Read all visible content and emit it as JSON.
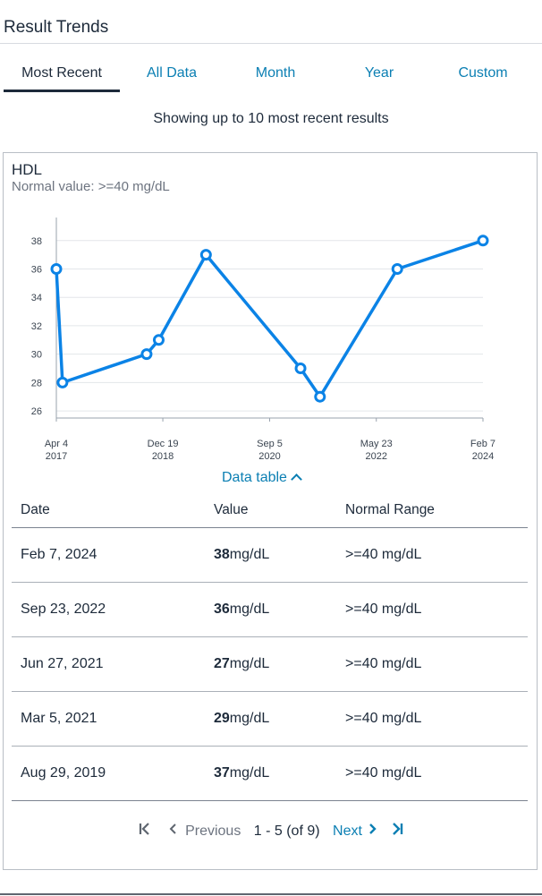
{
  "section_title": "Result Trends",
  "tabs": [
    {
      "label": "Most Recent",
      "active": true
    },
    {
      "label": "All Data",
      "active": false
    },
    {
      "label": "Month",
      "active": false
    },
    {
      "label": "Year",
      "active": false
    },
    {
      "label": "Custom",
      "active": false
    }
  ],
  "showing_text": "Showing up to 10 most recent results",
  "card": {
    "title": "HDL",
    "subtitle": "Normal value: >=40 mg/dL"
  },
  "chart_data": {
    "type": "line",
    "title": "HDL",
    "xlabel": "",
    "ylabel": "",
    "ylim": [
      25.5,
      39.5
    ],
    "yticks": [
      26,
      28,
      30,
      32,
      34,
      36,
      38
    ],
    "xticks": [
      {
        "date": "2017-04-04",
        "line1": "Apr 4",
        "line2": "2017"
      },
      {
        "date": "2018-12-19",
        "line1": "Dec 19",
        "line2": "2018"
      },
      {
        "date": "2020-09-05",
        "line1": "Sep 5",
        "line2": "2020"
      },
      {
        "date": "2022-05-23",
        "line1": "May 23",
        "line2": "2022"
      },
      {
        "date": "2024-02-07",
        "line1": "Feb 7",
        "line2": "2024"
      }
    ],
    "grid": true,
    "color": "#0b83e6",
    "series": [
      {
        "points": [
          {
            "x": "2017-04-04",
            "y": 36
          },
          {
            "x": "2017-05-10",
            "y": 28
          },
          {
            "x": "2018-09-15",
            "y": 30
          },
          {
            "x": "2018-11-25",
            "y": 31
          },
          {
            "x": "2019-08-29",
            "y": 37
          },
          {
            "x": "2021-03-05",
            "y": 29
          },
          {
            "x": "2021-06-27",
            "y": 27
          },
          {
            "x": "2022-09-23",
            "y": 36
          },
          {
            "x": "2024-02-07",
            "y": 38
          }
        ]
      }
    ]
  },
  "data_table_toggle": "Data table",
  "table": {
    "headers": [
      "Date",
      "Value",
      "Normal Range"
    ],
    "rows": [
      {
        "date": "Feb 7, 2024",
        "value": "38",
        "unit": "mg/dL",
        "range": ">=40 mg/dL"
      },
      {
        "date": "Sep 23, 2022",
        "value": "36",
        "unit": "mg/dL",
        "range": ">=40 mg/dL"
      },
      {
        "date": "Jun 27, 2021",
        "value": "27",
        "unit": "mg/dL",
        "range": ">=40 mg/dL"
      },
      {
        "date": "Mar 5, 2021",
        "value": "29",
        "unit": "mg/dL",
        "range": ">=40 mg/dL"
      },
      {
        "date": "Aug 29, 2019",
        "value": "37",
        "unit": "mg/dL",
        "range": ">=40 mg/dL"
      }
    ]
  },
  "pager": {
    "first_icon": "first-page-icon",
    "prev_icon": "chevron-left-icon",
    "previous_label": "Previous",
    "info": "1 - 5 (of 9)",
    "next_label": "Next",
    "next_icon": "chevron-right-icon",
    "last_icon": "last-page-icon"
  }
}
